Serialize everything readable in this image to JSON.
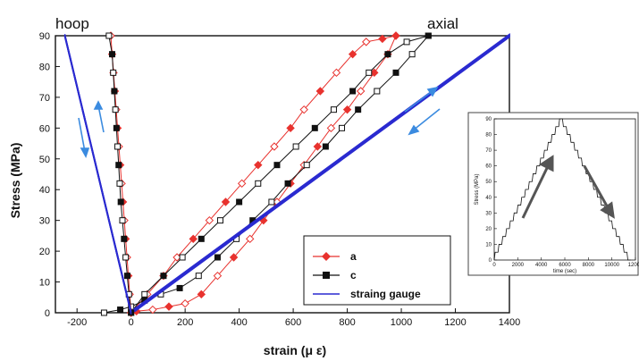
{
  "chart_data": [
    {
      "type": "line",
      "title": "",
      "xlabel": "strain (μ ε)",
      "ylabel": "Stress (MPa)",
      "xlim": [
        -280,
        1400
      ],
      "ylim": [
        0,
        90
      ],
      "x_ticks": [
        "-200",
        "0",
        "200",
        "400",
        "600",
        "800",
        "1000",
        "1200",
        "1400"
      ],
      "y_ticks": [
        "0",
        "10",
        "20",
        "30",
        "40",
        "50",
        "60",
        "70",
        "80",
        "90"
      ],
      "annotations": [
        "hoop",
        "axial"
      ],
      "legend": {
        "placement": "bottom-right",
        "entries": [
          "a",
          "c",
          "straing gauge"
        ]
      },
      "series": [
        {
          "name": "a",
          "group": "axial",
          "color": "#e8322e",
          "marker": "diamond",
          "x": [
            0,
            60,
            120,
            170,
            230,
            290,
            350,
            410,
            470,
            530,
            590,
            640,
            700,
            760,
            820,
            870,
            930,
            980
          ],
          "y": [
            0,
            6,
            12,
            18,
            24,
            30,
            36,
            42,
            48,
            54,
            60,
            66,
            72,
            78,
            84,
            88,
            89,
            90
          ]
        },
        {
          "name": "a (unloading)",
          "group": "axial",
          "color": "#e8322e",
          "marker": "diamond",
          "x": [
            980,
            950,
            900,
            850,
            800,
            740,
            690,
            640,
            590,
            540,
            490,
            440,
            380,
            320,
            260,
            200,
            140,
            80,
            20,
            0
          ],
          "y": [
            90,
            84,
            78,
            72,
            66,
            60,
            54,
            48,
            42,
            36,
            30,
            24,
            18,
            12,
            6,
            3,
            2,
            1,
            0.5,
            0
          ]
        },
        {
          "name": "c",
          "group": "axial",
          "color": "#111111",
          "marker": "square",
          "x": [
            0,
            50,
            120,
            190,
            260,
            330,
            400,
            470,
            540,
            610,
            680,
            750,
            820,
            880,
            950,
            1020,
            1100
          ],
          "y": [
            0,
            6,
            12,
            18,
            24,
            30,
            36,
            42,
            48,
            54,
            60,
            66,
            72,
            78,
            84,
            88,
            90
          ]
        },
        {
          "name": "c (unloading)",
          "group": "axial",
          "color": "#111111",
          "marker": "square",
          "x": [
            1100,
            1040,
            980,
            910,
            840,
            780,
            720,
            650,
            580,
            520,
            450,
            390,
            320,
            250,
            180,
            110,
            50,
            0,
            -40,
            -100
          ],
          "y": [
            90,
            84,
            78,
            72,
            66,
            60,
            54,
            48,
            42,
            36,
            30,
            24,
            18,
            12,
            8,
            6,
            4,
            2,
            1,
            0
          ]
        },
        {
          "name": "straing gauge",
          "group": "axial",
          "color": "#2a2ad0",
          "marker": "none",
          "x": [
            0,
            1400,
            1400,
            0
          ],
          "y": [
            0,
            90,
            90,
            0
          ]
        },
        {
          "name": "a",
          "group": "hoop",
          "color": "#e8322e",
          "marker": "diamond",
          "x": [
            0,
            -5,
            -10,
            -15,
            -20,
            -25,
            -30,
            -35,
            -40,
            -45,
            -50,
            -55,
            -60,
            -65,
            -70,
            -75
          ],
          "y": [
            0,
            6,
            12,
            18,
            24,
            30,
            36,
            42,
            48,
            54,
            60,
            66,
            72,
            78,
            84,
            90
          ]
        },
        {
          "name": "c",
          "group": "hoop",
          "color": "#111111",
          "marker": "square",
          "x": [
            0,
            -8,
            -14,
            -20,
            -26,
            -32,
            -38,
            -42,
            -46,
            -50,
            -54,
            -58,
            -62,
            -66,
            -70,
            -82
          ],
          "y": [
            0,
            6,
            12,
            18,
            24,
            30,
            36,
            42,
            48,
            54,
            60,
            66,
            72,
            78,
            84,
            90
          ]
        },
        {
          "name": "straing gauge",
          "group": "hoop",
          "color": "#2a2ad0",
          "marker": "none",
          "x": [
            0,
            -245,
            -245,
            0
          ],
          "y": [
            0,
            90,
            90,
            0
          ]
        }
      ]
    },
    {
      "type": "line",
      "title": "",
      "xlabel": "time (sec)",
      "ylabel": "Stress (MPa)",
      "xlim": [
        0,
        12000
      ],
      "ylim": [
        0,
        90
      ],
      "x_ticks": [
        "0",
        "2000",
        "4000",
        "6000",
        "8000",
        "10000",
        "12000"
      ],
      "y_ticks": [
        "0",
        "10",
        "20",
        "30",
        "40",
        "50",
        "60",
        "70",
        "80",
        "90"
      ],
      "series": [
        {
          "name": "",
          "color": "#111111",
          "x": [
            0,
            5800,
            11600
          ],
          "y": [
            0,
            90,
            0
          ],
          "stepped": true,
          "steps": 18
        }
      ]
    }
  ]
}
